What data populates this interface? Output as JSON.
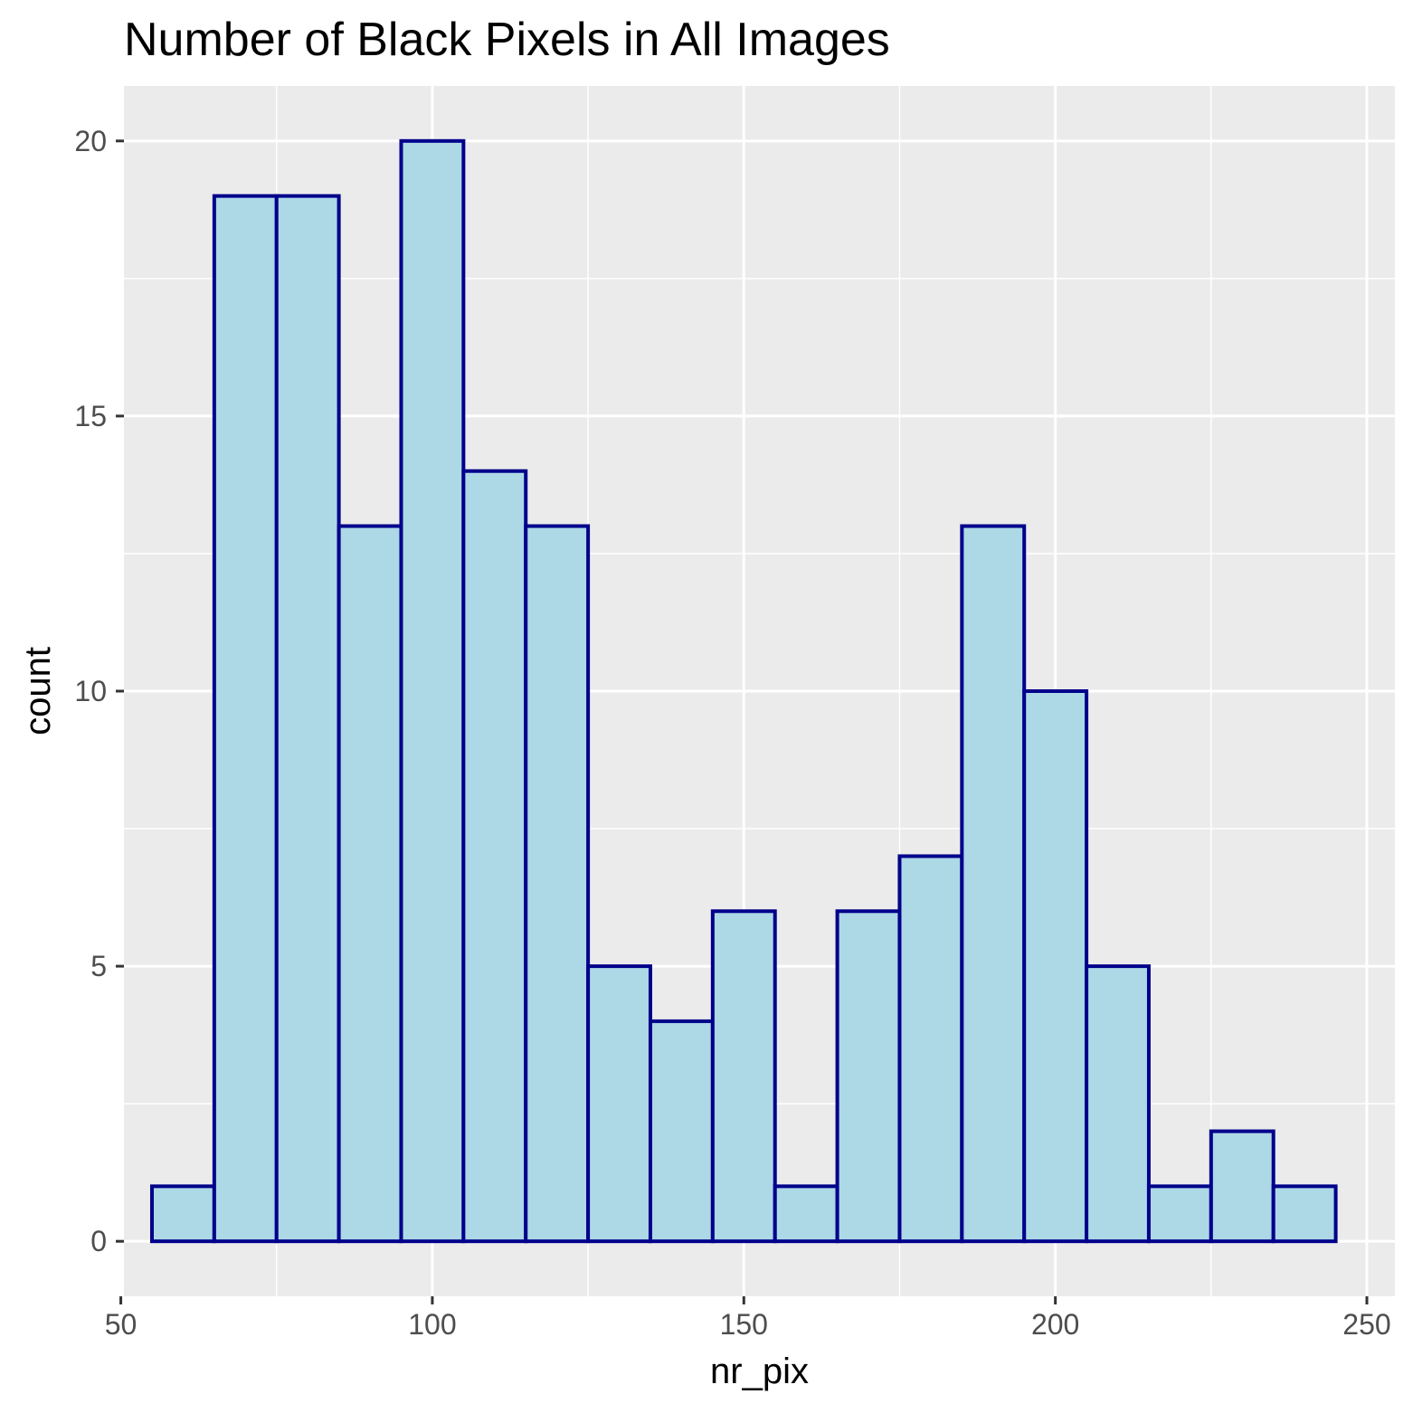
{
  "chart_data": {
    "type": "bar",
    "title": "Number of Black Pixels in All Images",
    "xlabel": "nr_pix",
    "ylabel": "count",
    "bin_width": 10,
    "bins": [
      {
        "x": 60,
        "count": 1
      },
      {
        "x": 70,
        "count": 19
      },
      {
        "x": 80,
        "count": 19
      },
      {
        "x": 90,
        "count": 13
      },
      {
        "x": 100,
        "count": 20
      },
      {
        "x": 110,
        "count": 14
      },
      {
        "x": 120,
        "count": 13
      },
      {
        "x": 130,
        "count": 5
      },
      {
        "x": 140,
        "count": 4
      },
      {
        "x": 150,
        "count": 6
      },
      {
        "x": 160,
        "count": 1
      },
      {
        "x": 170,
        "count": 6
      },
      {
        "x": 180,
        "count": 7
      },
      {
        "x": 190,
        "count": 13
      },
      {
        "x": 200,
        "count": 10
      },
      {
        "x": 210,
        "count": 5
      },
      {
        "x": 220,
        "count": 1
      },
      {
        "x": 230,
        "count": 2
      },
      {
        "x": 240,
        "count": 1
      }
    ],
    "xlim": [
      50.5,
      254.5
    ],
    "ylim": [
      -1,
      21
    ],
    "x_ticks": [
      50,
      100,
      150,
      200,
      250
    ],
    "x_tick_labels": [
      "50",
      "100",
      "150",
      "200",
      "250"
    ],
    "y_ticks": [
      0,
      5,
      10,
      15,
      20
    ],
    "y_tick_labels": [
      "0",
      "5",
      "10",
      "15",
      "20"
    ],
    "x_minor_ticks": [
      75,
      125,
      175,
      225
    ],
    "y_minor_ticks": [
      2.5,
      7.5,
      12.5,
      17.5
    ],
    "grid": true,
    "legend": "none",
    "colors": {
      "bar_fill": "#ADD8E6",
      "bar_outline": "#00008B",
      "panel_background": "#EBEBEB",
      "grid": "#FFFFFF"
    }
  }
}
